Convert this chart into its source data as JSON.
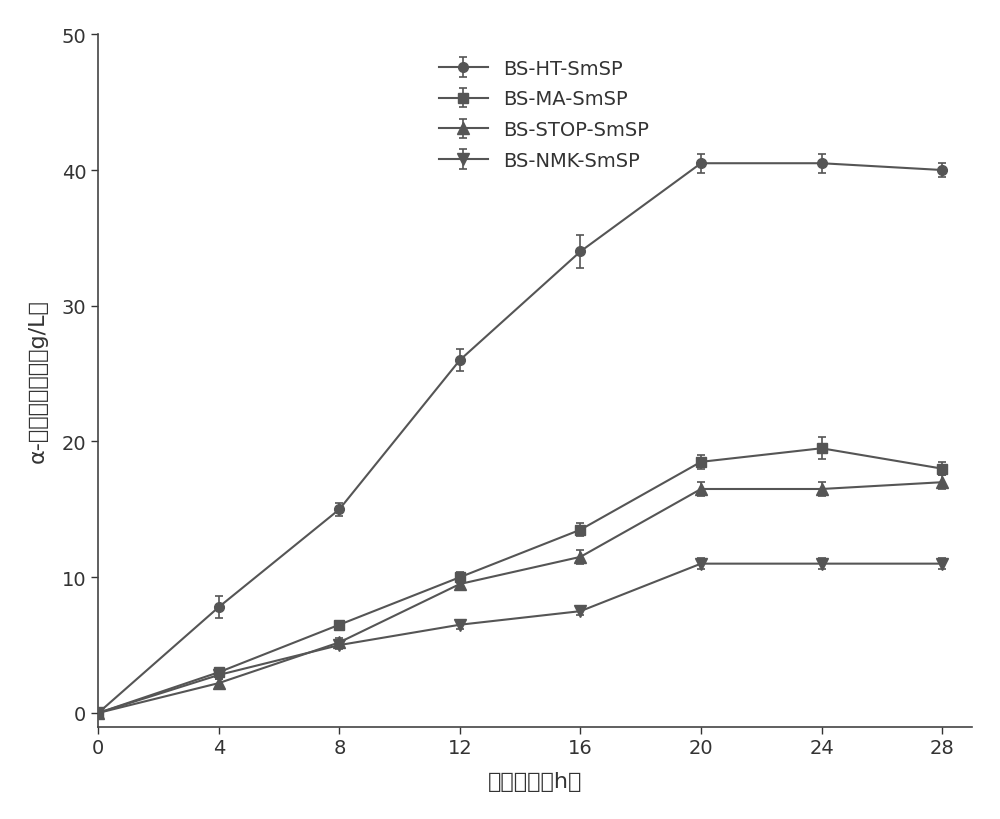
{
  "x": [
    0,
    4,
    8,
    12,
    16,
    20,
    24,
    28
  ],
  "series": [
    {
      "label": "BS-HT-SmSP",
      "y": [
        0,
        7.8,
        15.0,
        26.0,
        34.0,
        40.5,
        40.5,
        40.0
      ],
      "yerr": [
        0,
        0.8,
        0.5,
        0.8,
        1.2,
        0.7,
        0.7,
        0.5
      ],
      "marker": "o"
    },
    {
      "label": "BS-MA-SmSP",
      "y": [
        0,
        3.0,
        6.5,
        10.0,
        13.5,
        18.5,
        19.5,
        18.0
      ],
      "yerr": [
        0,
        0.3,
        0.3,
        0.4,
        0.5,
        0.5,
        0.8,
        0.5
      ],
      "marker": "s"
    },
    {
      "label": "BS-STOP-SmSP",
      "y": [
        0,
        2.2,
        5.2,
        9.5,
        11.5,
        16.5,
        16.5,
        17.0
      ],
      "yerr": [
        0,
        0.3,
        0.3,
        0.3,
        0.5,
        0.5,
        0.5,
        0.5
      ],
      "marker": "^"
    },
    {
      "label": "BS-NMK-SmSP",
      "y": [
        0,
        2.8,
        5.0,
        6.5,
        7.5,
        11.0,
        11.0,
        11.0
      ],
      "yerr": [
        0,
        0.3,
        0.3,
        0.3,
        0.3,
        0.4,
        0.4,
        0.4
      ],
      "marker": "v"
    }
  ],
  "xlim": [
    0,
    29
  ],
  "ylim": [
    -1,
    50
  ],
  "xticks": [
    0,
    4,
    8,
    12,
    16,
    20,
    24,
    28
  ],
  "yticks": [
    0,
    10,
    20,
    30,
    40,
    50
  ],
  "background_color": "#ffffff",
  "line_color": "#555555",
  "font_size_axis_label": 16,
  "font_size_tick": 14,
  "font_size_legend": 14
}
